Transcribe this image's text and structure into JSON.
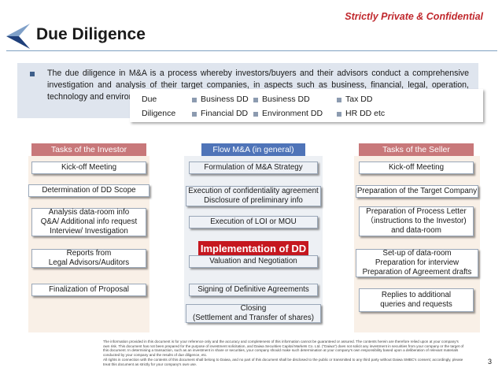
{
  "header": {
    "confidential": "Strictly Private & Confidential",
    "title": "Due Diligence"
  },
  "intro": {
    "text": "The due diligence in M&A is a process whereby investors/buyers and their advisors conduct a comprehensive investigation and analysis of their target companies, in aspects such as business, financial, legal, operation, technology and environment."
  },
  "dd_types": {
    "label_line1": "Due",
    "label_line2": "Diligence",
    "items": [
      "Business DD",
      "Business DD",
      "Tax DD",
      "Financial DD",
      "Environment DD",
      "HR DD  etc"
    ]
  },
  "investor": {
    "header": "Tasks of the Investor",
    "tasks": [
      "Kick-off Meeting",
      "Determination of DD Scope",
      "Analysis data-room info\nQ&A/ Additional info request\nInterview/ Investigation",
      "Reports from\nLegal Advisors/Auditors",
      "Finalization of Proposal"
    ]
  },
  "flow": {
    "header": "Flow M&A (in general)",
    "steps": [
      "Formulation of M&A Strategy",
      "Execution of confidentiality agreement\nDisclosure of preliminary info",
      "Execution of LOI or MOU",
      "Valuation and Negotiation",
      "Signing of Definitive Agreements",
      "Closing\n(Settlement and Transfer of shares)"
    ],
    "implementation": "Implementation of DD"
  },
  "seller": {
    "header": "Tasks of the Seller",
    "tasks": [
      "Kick-off Meeting",
      "Preparation of the Target Company",
      "Preparation of Process Letter\n（instructions to the Investor)\nand data-room",
      "Set-up of data-room\nPreparation for interview\nPreparation of Agreement drafts",
      "Replies to additional\nqueries and requests"
    ]
  },
  "footer": {
    "p1": "The information provided in this document is for your reference only and the accuracy and completeness of this information cannot be guaranteed or assured. The contents herein are therefore relied upon at your company's own risk. This document has not been prepared for the purpose of investment solicitation, and Daiwa Securities Capital Markets Co. Ltd. (\"Daiwa\") does not solicit any investment in securities from your company or the target of this document. In determining a transaction, such as an investment in share or securities, your company should make such determination at your company's own responsibility based upon a deliberation of relevant materials conducted by your company and the results of due diligence, etc.",
    "p2": "All rights in connection with the contents of this document shall belong to Daiwa, and no part of this document shall be disclosed to the public or transmitted to any third party without Daiwa SMBC's consent; accordingly, please treat this document as strictly for your company's own use."
  },
  "page_number": "3",
  "colors": {
    "accent_red": "#c5171f",
    "header_rose": "#c8787a",
    "header_blue": "#4f74b8",
    "confidential_red": "#c0282d"
  }
}
